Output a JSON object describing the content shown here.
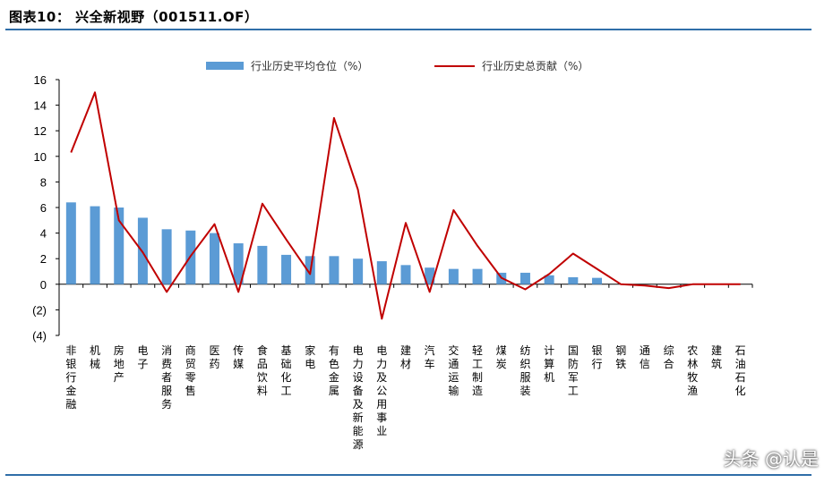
{
  "figure": {
    "title": "图表10：  兴全新视野（001511.OF）",
    "watermark": "头条 @认是"
  },
  "colors": {
    "bar": "#5b9bd5",
    "line": "#c00000",
    "rule": "#2f6ea8"
  },
  "chart_data": {
    "type": "bar",
    "categories": [
      "非银行金融",
      "机械",
      "房地产",
      "电子",
      "消费者服务",
      "商贸零售",
      "医药",
      "传媒",
      "食品饮料",
      "基础化工",
      "家电",
      "有色金属",
      "电力设备及新能源",
      "电力及公用事业",
      "建材",
      "汽车",
      "交通运输",
      "轻工制造",
      "煤炭",
      "纺织服装",
      "计算机",
      "国防军工",
      "银行",
      "钢铁",
      "通信",
      "综合",
      "农林牧渔",
      "建筑",
      "石油石化"
    ],
    "series": [
      {
        "name": "行业历史平均仓位（%）",
        "kind": "bar",
        "values": [
          6.4,
          6.1,
          6.0,
          5.2,
          4.3,
          4.2,
          4.0,
          3.2,
          3.0,
          2.3,
          2.2,
          2.2,
          2.0,
          1.8,
          1.5,
          1.3,
          1.2,
          1.2,
          0.9,
          0.9,
          0.7,
          0.55,
          0.5,
          0.0,
          0.0,
          0.0,
          0.0,
          0.0,
          0.0
        ]
      },
      {
        "name": "行业历史总贡献（%）",
        "kind": "line",
        "values": [
          10.3,
          15.0,
          5.0,
          2.5,
          -0.6,
          2.2,
          4.7,
          -0.6,
          6.3,
          3.5,
          0.8,
          13.0,
          7.4,
          -2.7,
          4.8,
          -0.6,
          5.8,
          3.0,
          0.5,
          -0.4,
          0.8,
          2.4,
          1.2,
          0.0,
          -0.1,
          -0.3,
          0.0,
          0.0,
          0.0
        ]
      }
    ],
    "ylim": [
      -4,
      16
    ],
    "yticks": [
      -4,
      -2,
      0,
      2,
      4,
      6,
      8,
      10,
      12,
      14,
      16
    ],
    "ytick_labels": [
      "(4)",
      "(2)",
      "0",
      "2",
      "4",
      "6",
      "8",
      "10",
      "12",
      "14",
      "16"
    ],
    "legend": "top",
    "grid": false
  }
}
